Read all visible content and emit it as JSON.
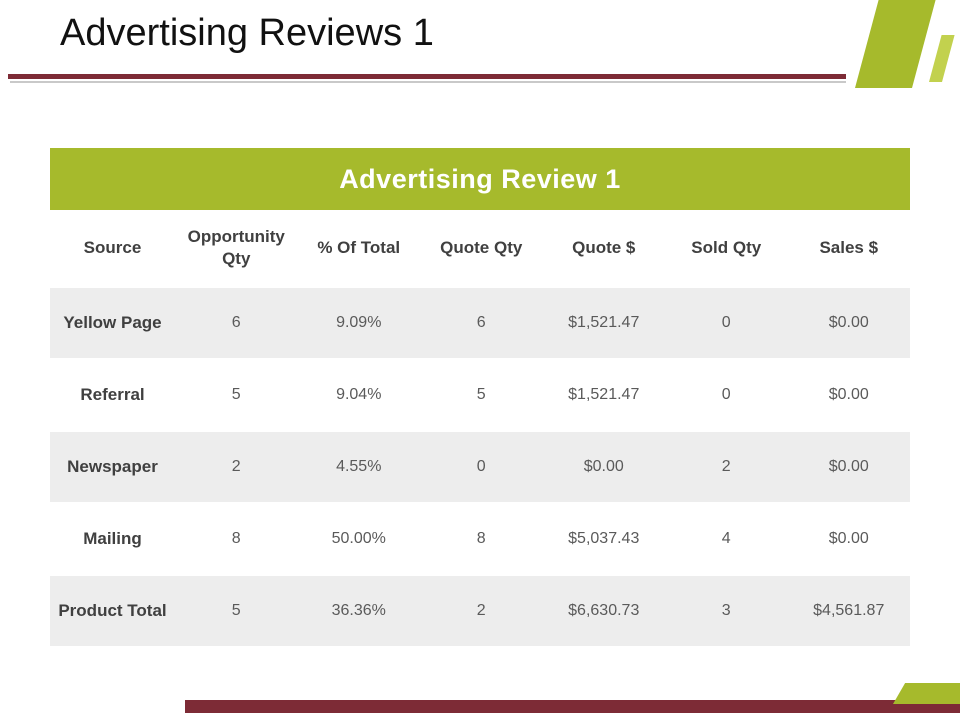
{
  "slide": {
    "title": "Advertising Reviews 1"
  },
  "table": {
    "header": "Advertising Review 1",
    "columns": [
      "Source",
      "Opportunity Qty",
      "% Of Total",
      "Quote Qty",
      "Quote $",
      "Sold Qty",
      "Sales $"
    ],
    "rows": [
      [
        "Yellow Page",
        "6",
        "9.09%",
        "6",
        "$1,521.47",
        "0",
        "$0.00"
      ],
      [
        "Referral",
        "5",
        "9.04%",
        "5",
        "$1,521.47",
        "0",
        "$0.00"
      ],
      [
        "Newspaper",
        "2",
        "4.55%",
        "0",
        "$0.00",
        "2",
        "$0.00"
      ],
      [
        "Mailing",
        "8",
        "50.00%",
        "8",
        "$5,037.43",
        "4",
        "$0.00"
      ],
      [
        "Product Total",
        "5",
        "36.36%",
        "2",
        "$6,630.73",
        "3",
        "$4,561.87"
      ]
    ]
  },
  "colors": {
    "accent_green": "#a6ba2c",
    "accent_green_light": "#c2d14e",
    "accent_maroon": "#7d2b36",
    "row_alt_background": "#ededed",
    "header_text": "#404040",
    "value_text": "#5a5a5a"
  }
}
